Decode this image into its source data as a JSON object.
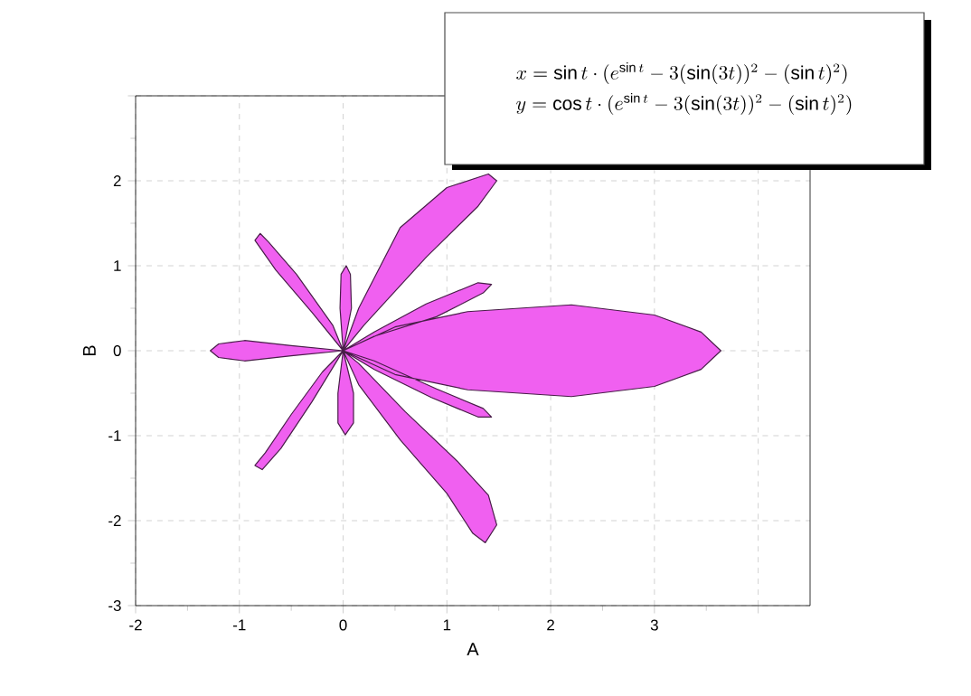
{
  "chart_data": {
    "type": "area",
    "xlabel": "A",
    "ylabel": "B",
    "annotations": [
      "x = \\sin t\\cdot(e^{\\sin t} - 3(\\sin(3t))^2 - (\\sin t)^2)",
      "y = \\cos t\\cdot(e^{\\sin t} - 3(\\sin(3t))^2 - (\\sin t)^2)"
    ],
    "xlim": [
      -2,
      4.5
    ],
    "ylim": [
      -3,
      3
    ],
    "xticks": [
      -2,
      -1,
      0,
      1,
      2,
      3,
      {
        "value": 4,
        "label": null
      }
    ],
    "yticks": [
      -3,
      -2,
      -1,
      0,
      1,
      2,
      {
        "value": 3,
        "label": null
      }
    ],
    "grid": true,
    "series": [
      {
        "color": "#f060f0",
        "x": [
          0,
          0.5,
          1.2,
          2.2,
          3.0,
          3.45,
          3.64,
          3.45,
          3.0,
          2.2,
          1.2,
          0.5,
          0,
          0.3,
          0.9,
          1.35,
          1.43,
          1.3,
          0.8,
          0.3,
          0,
          0.2,
          0.8,
          1.3,
          1.48,
          1.4,
          1.0,
          0.55,
          0.15,
          0,
          0.08,
          0.07,
          0.03,
          -0.02,
          -0.03,
          0,
          -0.1,
          -0.45,
          -0.72,
          -0.8,
          -0.85,
          -0.65,
          -0.3,
          0,
          -0.5,
          -0.95,
          -1.2,
          -1.28,
          -1.2,
          -0.95,
          -0.5,
          0,
          -0.2,
          -0.5,
          -0.75,
          -0.85,
          -0.78,
          -0.6,
          -0.3,
          -0.05,
          0,
          -0.05,
          -0.05,
          0.02,
          0.1,
          0.1,
          0,
          0.15,
          0.55,
          1.0,
          1.25,
          1.37,
          1.48,
          1.4,
          1.1,
          0.6,
          0.15,
          0,
          0.3,
          0.85,
          1.3,
          1.43,
          1.35,
          0.9,
          0.3,
          0
        ],
        "values": [
          0,
          -0.28,
          -0.46,
          -0.54,
          -0.42,
          -0.22,
          0,
          0.22,
          0.42,
          0.54,
          0.46,
          0.28,
          0,
          0.17,
          0.4,
          0.68,
          0.78,
          0.8,
          0.55,
          0.22,
          0,
          0.3,
          1.1,
          1.7,
          2.0,
          2.08,
          1.92,
          1.45,
          0.5,
          0,
          0.5,
          0.9,
          1.0,
          0.9,
          0.5,
          0,
          0.3,
          0.9,
          1.28,
          1.38,
          1.3,
          0.95,
          0.45,
          0,
          0.06,
          0.12,
          0.08,
          0,
          -0.08,
          -0.12,
          -0.06,
          0,
          -0.25,
          -0.75,
          -1.2,
          -1.35,
          -1.4,
          -1.15,
          -0.6,
          -0.1,
          0,
          -0.5,
          -0.85,
          -0.99,
          -0.85,
          -0.5,
          0,
          -0.4,
          -1.05,
          -1.68,
          -2.15,
          -2.26,
          -2.05,
          -1.7,
          -1.3,
          -0.72,
          -0.15,
          0,
          -0.22,
          -0.55,
          -0.78,
          -0.78,
          -0.68,
          -0.45,
          -0.12,
          0
        ]
      }
    ]
  }
}
